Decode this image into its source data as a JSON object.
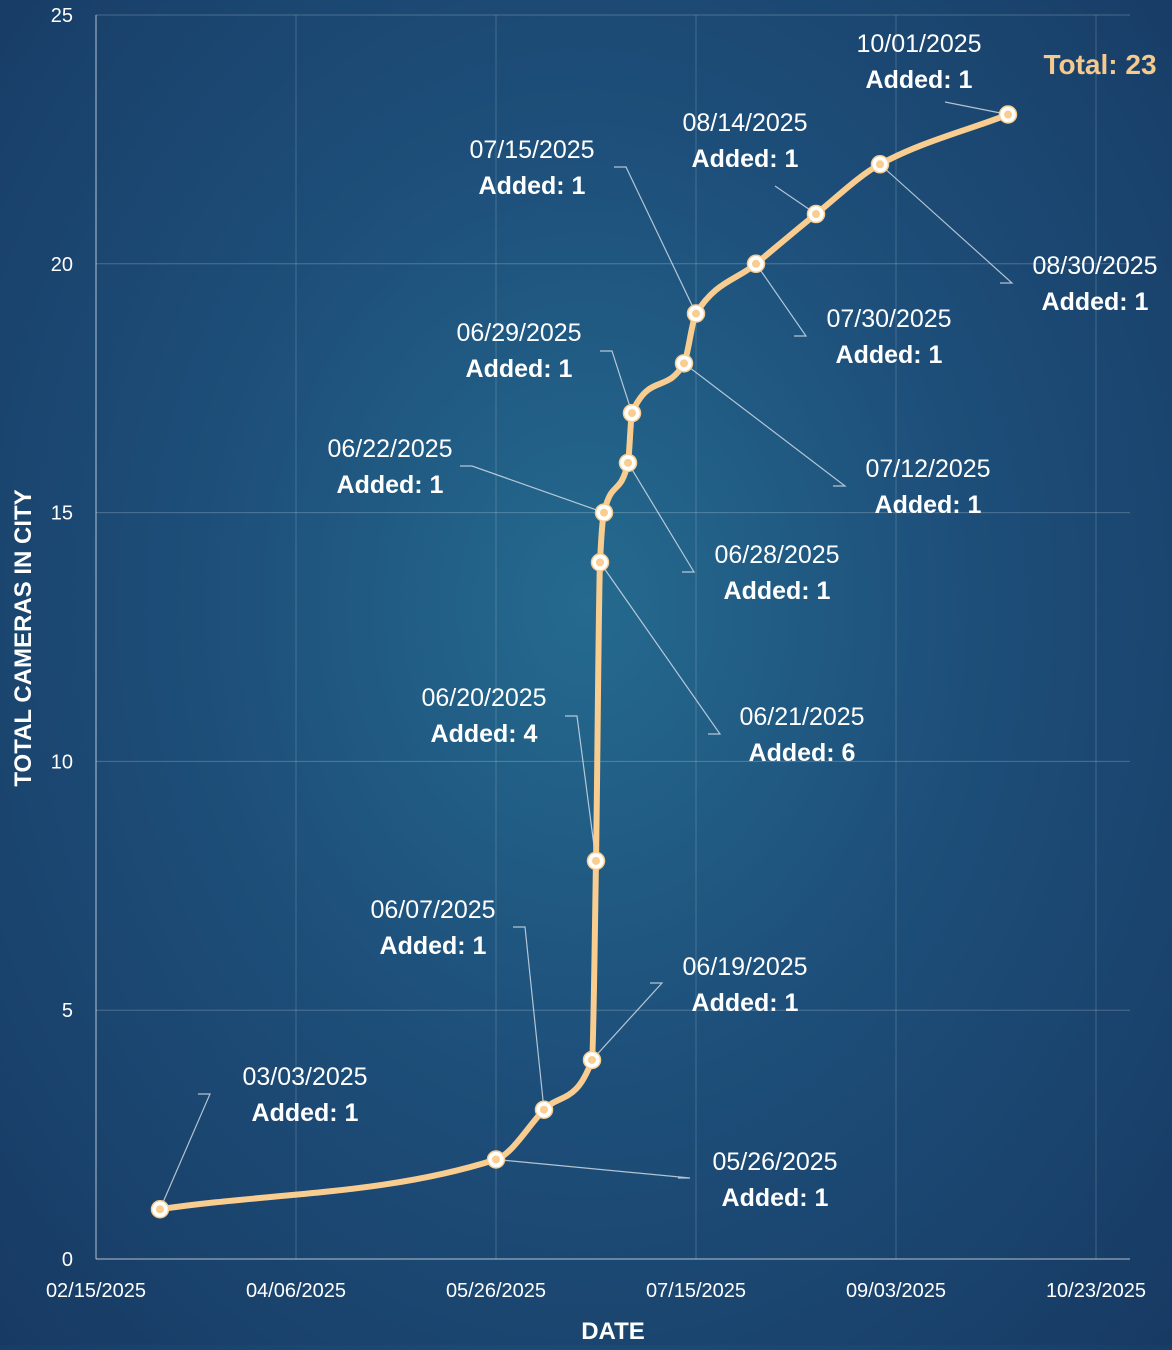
{
  "chart_data": {
    "type": "line",
    "title": "",
    "xlabel": "DATE",
    "ylabel": "TOTAL CAMERAS IN CITY",
    "ylim": [
      0,
      25
    ],
    "xlim": [
      "02/15/2025",
      "10/23/2025"
    ],
    "x_ticks": [
      "02/15/2025",
      "04/06/2025",
      "05/26/2025",
      "07/15/2025",
      "09/03/2025",
      "10/23/2025"
    ],
    "y_ticks": [
      0,
      5,
      10,
      15,
      20,
      25
    ],
    "grid": true,
    "line_color": "#f8cd8f",
    "total_label": "Total: 23",
    "series": [
      {
        "points": [
          {
            "x": "03/03/2025",
            "y": 1
          },
          {
            "x": "05/26/2025",
            "y": 2
          },
          {
            "x": "06/07/2025",
            "y": 3
          },
          {
            "x": "06/19/2025",
            "y": 4
          },
          {
            "x": "06/20/2025",
            "y": 8
          },
          {
            "x": "06/21/2025",
            "y": 14
          },
          {
            "x": "06/22/2025",
            "y": 15
          },
          {
            "x": "06/28/2025",
            "y": 16
          },
          {
            "x": "06/29/2025",
            "y": 17
          },
          {
            "x": "07/12/2025",
            "y": 18
          },
          {
            "x": "07/15/2025",
            "y": 19
          },
          {
            "x": "07/30/2025",
            "y": 20
          },
          {
            "x": "08/14/2025",
            "y": 21
          },
          {
            "x": "08/30/2025",
            "y": 22
          },
          {
            "x": "10/01/2025",
            "y": 23
          }
        ]
      }
    ],
    "annotations": [
      {
        "date": "03/03/2025",
        "added": "Added: 1"
      },
      {
        "date": "05/26/2025",
        "added": "Added: 1"
      },
      {
        "date": "06/07/2025",
        "added": "Added: 1"
      },
      {
        "date": "06/19/2025",
        "added": "Added: 1"
      },
      {
        "date": "06/20/2025",
        "added": "Added: 4"
      },
      {
        "date": "06/21/2025",
        "added": "Added: 6"
      },
      {
        "date": "06/22/2025",
        "added": "Added: 1"
      },
      {
        "date": "06/28/2025",
        "added": "Added: 1"
      },
      {
        "date": "06/29/2025",
        "added": "Added: 1"
      },
      {
        "date": "07/12/2025",
        "added": "Added: 1"
      },
      {
        "date": "07/15/2025",
        "added": "Added: 1"
      },
      {
        "date": "07/30/2025",
        "added": "Added: 1"
      },
      {
        "date": "08/14/2025",
        "added": "Added: 1"
      },
      {
        "date": "08/30/2025",
        "added": "Added: 1"
      },
      {
        "date": "10/01/2025",
        "added": "Added: 1"
      }
    ]
  }
}
